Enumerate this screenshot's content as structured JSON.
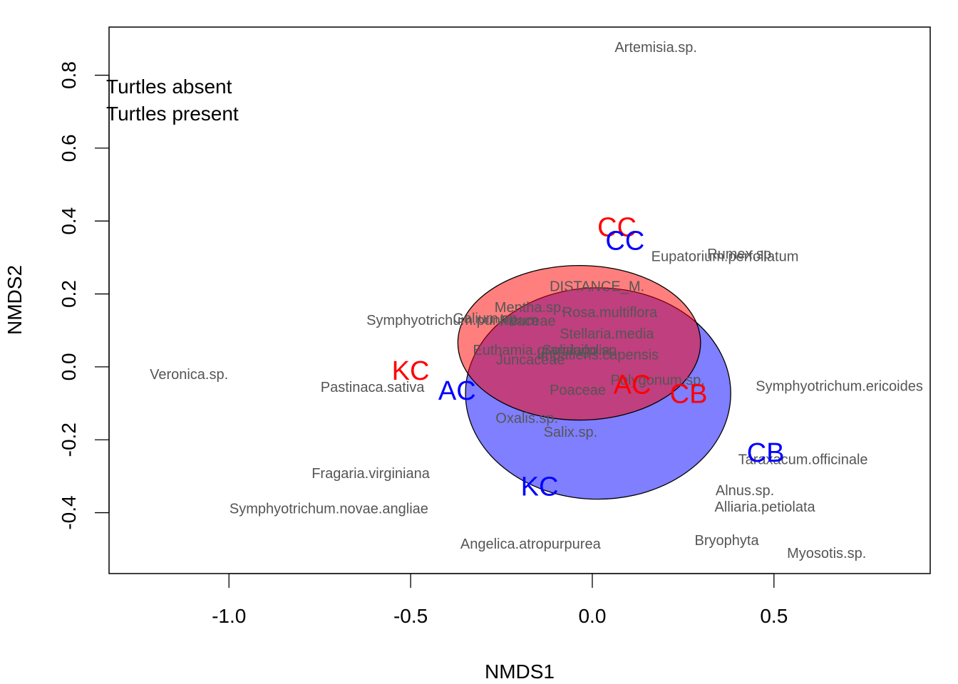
{
  "chart_data": {
    "type": "scatter",
    "title": "",
    "xlabel": "NMDS1",
    "ylabel": "NMDS2",
    "xlim": [
      -1.33,
      0.93
    ],
    "ylim": [
      -0.567,
      0.932
    ],
    "x_ticks": [
      {
        "value": -1.0,
        "label": "-1.0"
      },
      {
        "value": -0.5,
        "label": "-0.5"
      },
      {
        "value": 0.0,
        "label": "0.0"
      },
      {
        "value": 0.5,
        "label": "0.5"
      }
    ],
    "y_ticks": [
      {
        "value": -0.4,
        "label": "-0.4"
      },
      {
        "value": -0.2,
        "label": "-0.2"
      },
      {
        "value": 0.0,
        "label": "0.0"
      },
      {
        "value": 0.2,
        "label": "0.2"
      },
      {
        "value": 0.4,
        "label": "0.4"
      },
      {
        "value": 0.6,
        "label": "0.6"
      },
      {
        "value": 0.8,
        "label": "0.8"
      }
    ],
    "legend": {
      "placement": "top-left",
      "entries": [
        "Turtles absent",
        "Turtles present"
      ]
    },
    "ellipses": [
      {
        "group": "Turtles present",
        "cx": 0.016,
        "cy": -0.073,
        "rx": 0.365,
        "ry": 0.29,
        "fill": "#0000FF",
        "opacity": 0.5
      },
      {
        "group": "Turtles absent",
        "cx": -0.036,
        "cy": 0.066,
        "rx": 0.334,
        "ry": 0.212,
        "fill": "#FF0000",
        "opacity": 0.5
      }
    ],
    "site_labels": [
      {
        "label": "CC",
        "x": 0.068,
        "y": 0.382,
        "color": "#FF0000"
      },
      {
        "label": "CC",
        "x": 0.09,
        "y": 0.345,
        "color": "#0000FF"
      },
      {
        "label": "KC",
        "x": -0.5,
        "y": -0.012,
        "color": "#FF0000"
      },
      {
        "label": "AC",
        "x": -0.372,
        "y": -0.067,
        "color": "#0000FF"
      },
      {
        "label": "AC",
        "x": 0.11,
        "y": -0.05,
        "color": "#FF0000"
      },
      {
        "label": "CB",
        "x": 0.265,
        "y": -0.075,
        "color": "#FF0000"
      },
      {
        "label": "CB",
        "x": 0.477,
        "y": -0.237,
        "color": "#0000FF"
      },
      {
        "label": "KC",
        "x": -0.145,
        "y": -0.33,
        "color": "#0000FF"
      }
    ],
    "species_labels": [
      {
        "label": "Artemisia.sp.",
        "x": 0.175,
        "y": 0.875
      },
      {
        "label": "Eupatorium.perfoliatum",
        "x": 0.365,
        "y": 0.302
      },
      {
        "label": "Rumex.sp.",
        "x": 0.41,
        "y": 0.309
      },
      {
        "label": "DISTANCE_M.",
        "x": 0.013,
        "y": 0.22
      },
      {
        "label": "Symphyotrichum.puniceum",
        "x": -0.385,
        "y": 0.127
      },
      {
        "label": "Galium.sp.",
        "x": -0.29,
        "y": 0.132
      },
      {
        "label": "Mentha.sp.",
        "x": -0.172,
        "y": 0.162
      },
      {
        "label": "Poaceae",
        "x": -0.178,
        "y": 0.125
      },
      {
        "label": "Rosa.multiflora",
        "x": 0.048,
        "y": 0.148
      },
      {
        "label": "Stellaria.media",
        "x": 0.04,
        "y": 0.09
      },
      {
        "label": "Euthamia.graminifolia",
        "x": -0.14,
        "y": 0.045
      },
      {
        "label": "Solidago.sp.",
        "x": -0.03,
        "y": 0.045
      },
      {
        "label": "Impatiens.capensis",
        "x": 0.015,
        "y": 0.032
      },
      {
        "label": "Juncaceae",
        "x": -0.17,
        "y": 0.018
      },
      {
        "label": "Polygonum.sp.",
        "x": 0.18,
        "y": -0.037
      },
      {
        "label": "Symphyotrichum.ericoides",
        "x": 0.68,
        "y": -0.054
      },
      {
        "label": "Veronica.sp.",
        "x": -1.11,
        "y": -0.022
      },
      {
        "label": "Pastinaca.sativa",
        "x": -0.605,
        "y": -0.057
      },
      {
        "label": "Poaceae",
        "x": -0.04,
        "y": -0.065
      },
      {
        "label": "Oxalis.sp.",
        "x": -0.18,
        "y": -0.142
      },
      {
        "label": "Salix.sp.",
        "x": -0.06,
        "y": -0.18
      },
      {
        "label": "Taraxacum.officinale",
        "x": 0.58,
        "y": -0.255
      },
      {
        "label": "Fragaria.virginiana",
        "x": -0.61,
        "y": -0.293
      },
      {
        "label": "Alnus.sp.",
        "x": 0.42,
        "y": -0.34
      },
      {
        "label": "Alliaria.petiolata",
        "x": 0.475,
        "y": -0.385
      },
      {
        "label": "Symphyotrichum.novae.angliae",
        "x": -0.725,
        "y": -0.39
      },
      {
        "label": "Angelica.atropurpurea",
        "x": -0.17,
        "y": -0.487
      },
      {
        "label": "Bryophyta",
        "x": 0.37,
        "y": -0.477
      },
      {
        "label": "Myosotis.sp.",
        "x": 0.645,
        "y": -0.512
      }
    ]
  }
}
